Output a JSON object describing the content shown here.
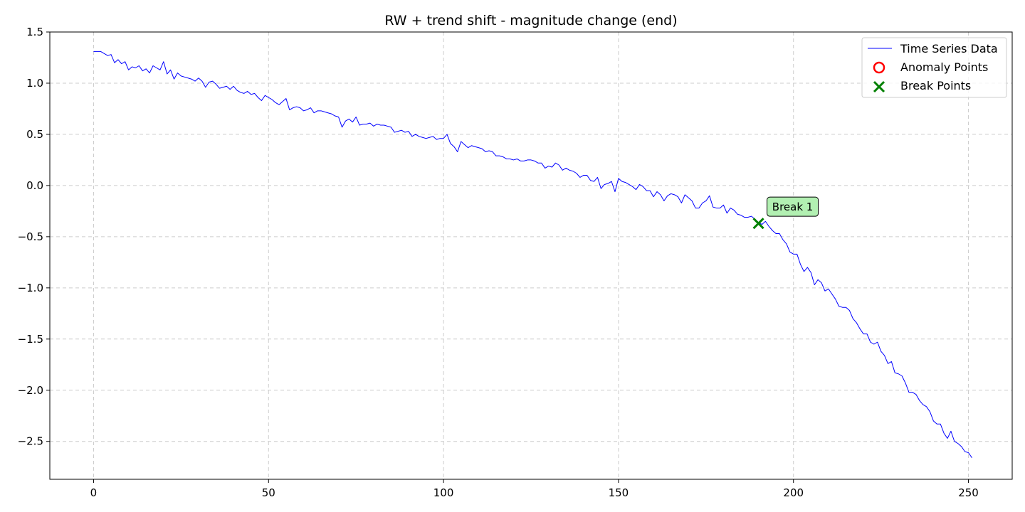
{
  "colors": {
    "line": "#0000ff",
    "anomaly": "#ff0000",
    "break": "#008000",
    "grid": "#cccccc",
    "annotation_fill": "#b2f0b2"
  },
  "chart_data": {
    "type": "line",
    "title": "RW + trend shift - magnitude change (end)",
    "xlabel": "",
    "ylabel": "",
    "xlim": [
      -12.5,
      262.5
    ],
    "ylim": [
      -2.87,
      1.5
    ],
    "xticks": [
      0,
      50,
      100,
      150,
      200,
      250
    ],
    "xtick_labels": [
      "0",
      "50",
      "100",
      "150",
      "200",
      "250"
    ],
    "yticks": [
      1.5,
      1.0,
      0.5,
      0.0,
      -0.5,
      -1.0,
      -1.5,
      -2.0,
      -2.5
    ],
    "ytick_labels": [
      "1.5",
      "1.0",
      "0.5",
      "0.0",
      "−0.5",
      "−1.0",
      "−1.5",
      "−2.0",
      "−2.5"
    ],
    "grid": true,
    "legend_position": "top-right",
    "legend": [
      "Time Series Data",
      "Anomaly Points",
      "Break Points"
    ],
    "series": [
      {
        "name": "Time Series Data",
        "x_start": 0,
        "x_step": 1,
        "values": [
          1.31,
          1.31,
          1.31,
          1.29,
          1.27,
          1.28,
          1.2,
          1.23,
          1.19,
          1.21,
          1.13,
          1.16,
          1.15,
          1.17,
          1.12,
          1.14,
          1.1,
          1.17,
          1.15,
          1.13,
          1.21,
          1.09,
          1.13,
          1.04,
          1.1,
          1.07,
          1.06,
          1.05,
          1.04,
          1.02,
          1.05,
          1.02,
          0.96,
          1.01,
          1.02,
          0.99,
          0.95,
          0.96,
          0.97,
          0.94,
          0.97,
          0.93,
          0.91,
          0.9,
          0.92,
          0.89,
          0.9,
          0.86,
          0.83,
          0.88,
          0.86,
          0.84,
          0.81,
          0.79,
          0.82,
          0.85,
          0.74,
          0.76,
          0.77,
          0.76,
          0.73,
          0.74,
          0.76,
          0.71,
          0.73,
          0.73,
          0.72,
          0.71,
          0.7,
          0.68,
          0.67,
          0.57,
          0.63,
          0.65,
          0.62,
          0.67,
          0.59,
          0.6,
          0.6,
          0.61,
          0.58,
          0.6,
          0.59,
          0.59,
          0.58,
          0.57,
          0.52,
          0.53,
          0.54,
          0.52,
          0.53,
          0.48,
          0.5,
          0.48,
          0.47,
          0.46,
          0.47,
          0.48,
          0.45,
          0.46,
          0.46,
          0.5,
          0.41,
          0.38,
          0.33,
          0.43,
          0.4,
          0.37,
          0.39,
          0.38,
          0.37,
          0.36,
          0.33,
          0.34,
          0.33,
          0.29,
          0.29,
          0.28,
          0.26,
          0.26,
          0.25,
          0.26,
          0.24,
          0.24,
          0.25,
          0.25,
          0.24,
          0.22,
          0.22,
          0.17,
          0.19,
          0.18,
          0.22,
          0.2,
          0.15,
          0.17,
          0.15,
          0.14,
          0.12,
          0.08,
          0.1,
          0.1,
          0.05,
          0.04,
          0.08,
          -0.03,
          0.01,
          0.02,
          0.04,
          -0.06,
          0.07,
          0.04,
          0.03,
          0.01,
          -0.01,
          -0.04,
          0.01,
          -0.01,
          -0.05,
          -0.05,
          -0.11,
          -0.06,
          -0.09,
          -0.15,
          -0.1,
          -0.08,
          -0.09,
          -0.11,
          -0.17,
          -0.09,
          -0.12,
          -0.15,
          -0.22,
          -0.22,
          -0.17,
          -0.15,
          -0.1,
          -0.21,
          -0.22,
          -0.22,
          -0.19,
          -0.27,
          -0.22,
          -0.24,
          -0.28,
          -0.29,
          -0.31,
          -0.31,
          -0.3,
          -0.33,
          -0.36,
          -0.38,
          -0.35,
          -0.4,
          -0.44,
          -0.47,
          -0.47,
          -0.53,
          -0.57,
          -0.65,
          -0.67,
          -0.67,
          -0.77,
          -0.84,
          -0.8,
          -0.85,
          -0.97,
          -0.92,
          -0.95,
          -1.03,
          -1.01,
          -1.06,
          -1.11,
          -1.18,
          -1.19,
          -1.19,
          -1.22,
          -1.3,
          -1.34,
          -1.4,
          -1.45,
          -1.45,
          -1.53,
          -1.55,
          -1.53,
          -1.62,
          -1.66,
          -1.74,
          -1.72,
          -1.83,
          -1.84,
          -1.86,
          -1.93,
          -2.02,
          -2.02,
          -2.04,
          -2.1,
          -2.14,
          -2.16,
          -2.21,
          -2.3,
          -2.33,
          -2.33,
          -2.42,
          -2.47,
          -2.4,
          -2.5,
          -2.52,
          -2.55,
          -2.6,
          -2.61,
          -2.66
        ]
      }
    ],
    "anomaly_points": [],
    "break_points": [
      {
        "x": 190,
        "y": -0.37
      }
    ],
    "annotations": [
      {
        "text": "Break 1",
        "x": 190,
        "y": -0.37
      }
    ]
  }
}
